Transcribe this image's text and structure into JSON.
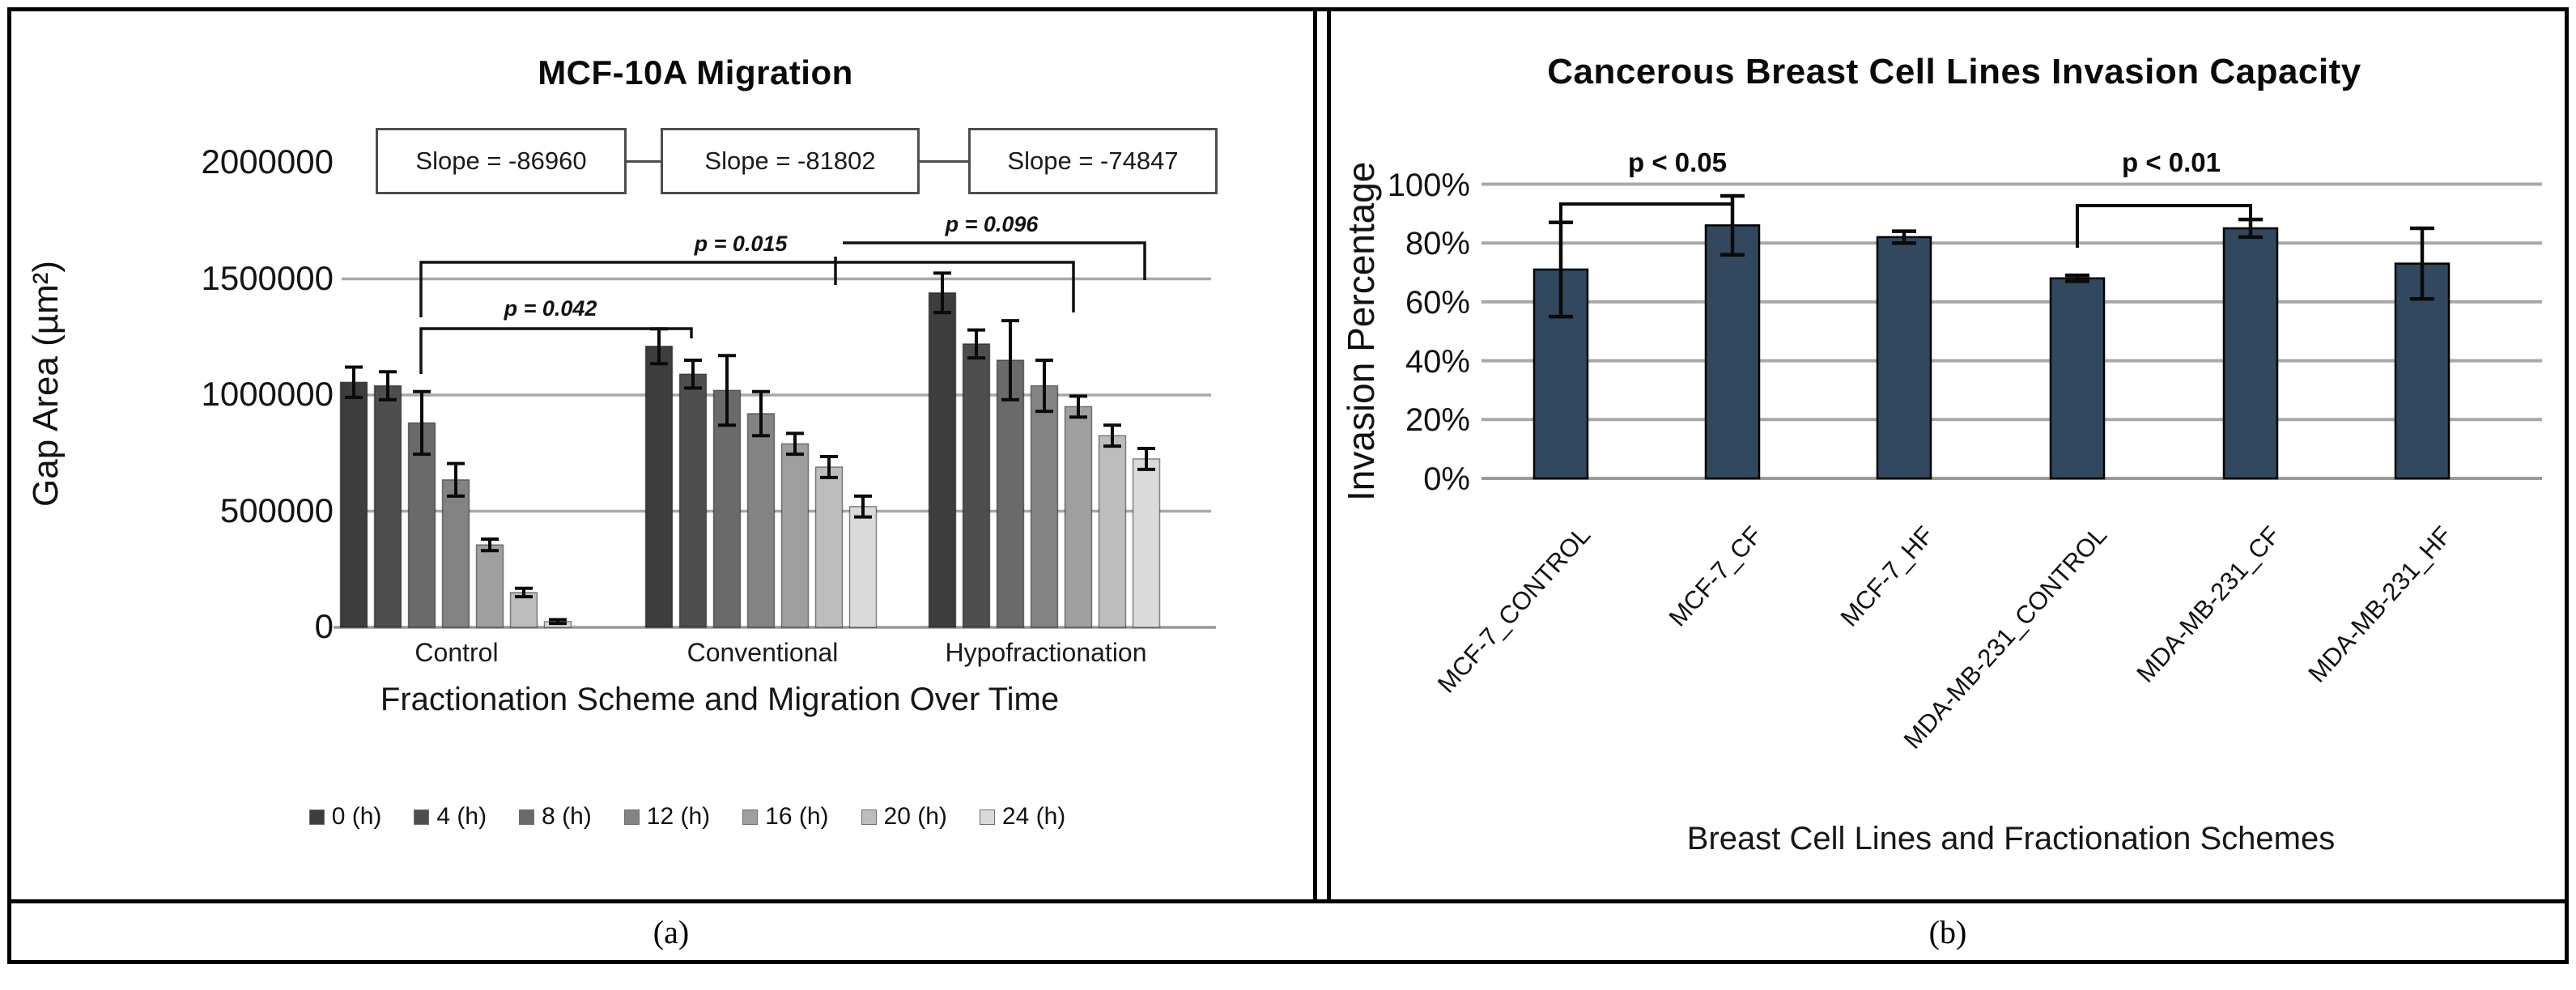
{
  "figure": {
    "caption_a": "(a)",
    "caption_b": "(b)"
  },
  "chart_data": [
    {
      "panel": "a",
      "type": "bar",
      "title": "MCF-10A Migration",
      "ylabel": "Gap Area (µm²)",
      "xlabel": "Fractionation Scheme and Migration Over Time",
      "ylim": [
        0,
        2000000
      ],
      "yticks": [
        0,
        500000,
        1000000,
        1500000,
        2000000
      ],
      "grid": true,
      "legend_position": "bottom",
      "categories": [
        "Control",
        "Conventional",
        "Hypofractionation"
      ],
      "series": [
        {
          "name": "0 (h)",
          "color": "#3d3d3d",
          "values": [
            1055000,
            1210000,
            1440000
          ],
          "errors": [
            65000,
            75000,
            85000
          ]
        },
        {
          "name": "4 (h)",
          "color": "#4e4e4e",
          "values": [
            1040000,
            1090000,
            1220000
          ],
          "errors": [
            60000,
            60000,
            60000
          ]
        },
        {
          "name": "8 (h)",
          "color": "#6a6a6a",
          "values": [
            880000,
            1020000,
            1150000
          ],
          "errors": [
            135000,
            150000,
            170000
          ]
        },
        {
          "name": "12 (h)",
          "color": "#838383",
          "values": [
            635000,
            920000,
            1040000
          ],
          "errors": [
            70000,
            95000,
            110000
          ]
        },
        {
          "name": "16 (h)",
          "color": "#9f9f9f",
          "values": [
            355000,
            790000,
            950000
          ],
          "errors": [
            25000,
            45000,
            45000
          ]
        },
        {
          "name": "20 (h)",
          "color": "#bdbdbd",
          "values": [
            150000,
            690000,
            825000
          ],
          "errors": [
            18000,
            45000,
            45000
          ]
        },
        {
          "name": "24 (h)",
          "color": "#dadada",
          "values": [
            25000,
            520000,
            725000
          ],
          "errors": [
            8000,
            45000,
            45000
          ]
        }
      ],
      "slope_annotations": [
        "Slope = -86960",
        "Slope = -81802",
        "Slope = -74847"
      ],
      "p_annotations": [
        {
          "label": "p = 0.042",
          "from": "Control",
          "to": "Conventional"
        },
        {
          "label": "p = 0.015",
          "from": "Control",
          "to": "Hypofractionation"
        },
        {
          "label": "p = 0.096",
          "from": "Conventional",
          "to": "Hypofractionation"
        }
      ]
    },
    {
      "panel": "b",
      "type": "bar",
      "title": "Cancerous Breast Cell Lines Invasion Capacity",
      "ylabel": "Invasion Percentage",
      "xlabel": "Breast Cell Lines and Fractionation Schemes",
      "ylim": [
        0,
        100
      ],
      "ytick_labels": [
        "0%",
        "20%",
        "40%",
        "60%",
        "80%",
        "100%"
      ],
      "grid": true,
      "bar_color": "#31485e",
      "categories": [
        "MCF-7_CONTROL",
        "MCF-7_CF",
        "MCF-7_HF",
        "MDA-MB-231_CONTROL",
        "MDA-MB-231_CF",
        "MDA-MB-231_HF"
      ],
      "values": [
        71,
        86,
        82,
        68,
        85,
        73
      ],
      "errors": [
        16,
        10,
        2,
        1,
        3,
        12
      ],
      "p_annotations": [
        {
          "label": "p < 0.05",
          "from": "MCF-7_CONTROL",
          "to": "MCF-7_CF"
        },
        {
          "label": "p < 0.01",
          "from": "MDA-MB-231_CONTROL",
          "to": "MDA-MB-231_CF"
        }
      ]
    }
  ]
}
